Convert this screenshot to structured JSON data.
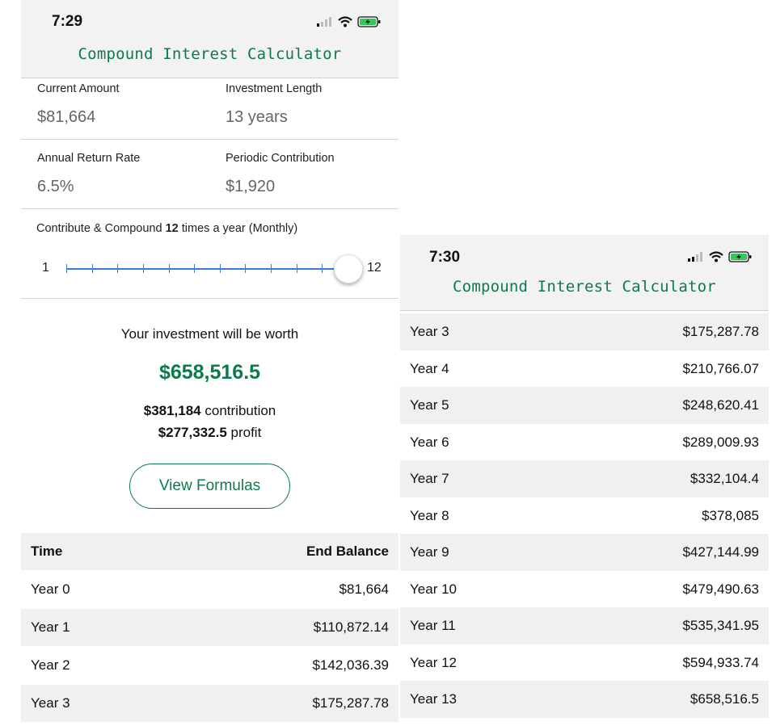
{
  "left": {
    "status_bar": {
      "time": "7:29"
    },
    "app_title": "Compound Interest Calculator",
    "fields": {
      "current_amount": {
        "label": "Current Amount",
        "value": "$81,664"
      },
      "investment_length": {
        "label": "Investment Length",
        "value": "13 years"
      },
      "annual_return_rate": {
        "label": "Annual Return Rate",
        "value": "6.5%"
      },
      "periodic_contribution": {
        "label": "Periodic Contribution",
        "value": "$1,920"
      }
    },
    "frequency": {
      "prefix": "Contribute & Compound",
      "count": "12",
      "suffix": "times a year (Monthly)",
      "slider_min": "1",
      "slider_max": "12",
      "slider_value": 12
    },
    "result": {
      "label": "Your investment will be worth",
      "value": "$658,516.5",
      "contribution_amount": "$381,184",
      "contribution_label": "contribution",
      "profit_amount": "$277,332.5",
      "profit_label": "profit"
    },
    "formulas_button": "View Formulas",
    "table": {
      "header_time": "Time",
      "header_balance": "End Balance",
      "rows": [
        {
          "time": "Year 0",
          "balance": "$81,664"
        },
        {
          "time": "Year 1",
          "balance": "$110,872.14"
        },
        {
          "time": "Year 2",
          "balance": "$142,036.39"
        },
        {
          "time": "Year 3",
          "balance": "$175,287.78"
        }
      ]
    }
  },
  "right": {
    "status_bar": {
      "time": "7:30"
    },
    "app_title": "Compound Interest Calculator",
    "rows": [
      {
        "time": "Year 3",
        "balance": "$175,287.78"
      },
      {
        "time": "Year 4",
        "balance": "$210,766.07"
      },
      {
        "time": "Year 5",
        "balance": "$248,620.41"
      },
      {
        "time": "Year 6",
        "balance": "$289,009.93"
      },
      {
        "time": "Year 7",
        "balance": "$332,104.4"
      },
      {
        "time": "Year 8",
        "balance": "$378,085"
      },
      {
        "time": "Year 9",
        "balance": "$427,144.99"
      },
      {
        "time": "Year 10",
        "balance": "$479,490.63"
      },
      {
        "time": "Year 11",
        "balance": "$535,341.95"
      },
      {
        "time": "Year 12",
        "balance": "$594,933.74"
      },
      {
        "time": "Year 13",
        "balance": "$658,516.5"
      }
    ]
  },
  "colors": {
    "accent": "#0d7a4a",
    "slider": "#2f7fd6",
    "header_bg": "#f2f2f2",
    "row_shade": "#f0f0f0"
  }
}
